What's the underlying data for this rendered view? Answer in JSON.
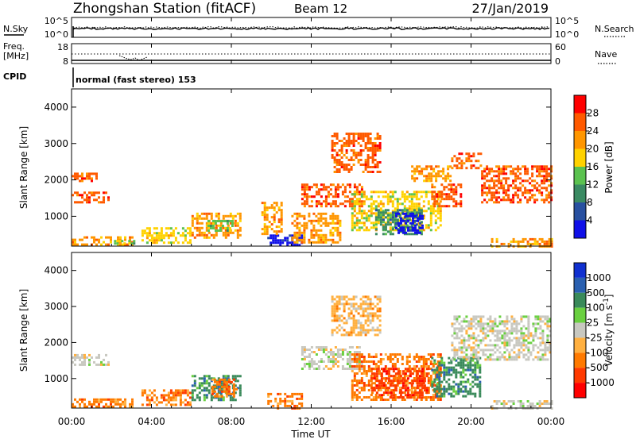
{
  "header": {
    "title": "Zhongshan Station (fitACF)",
    "beam": "Beam 12",
    "date": "27/Jan/2019"
  },
  "noise_panel": {
    "left_label_line1": "N.Sky",
    "left_ticks": [
      "10^5",
      "10^0"
    ],
    "right_label_line1": "N.Search",
    "right_ticks": [
      "10^5",
      "10^0"
    ]
  },
  "freq_panel": {
    "left_label_line1": "Freq.",
    "left_label_line2": "[MHz]",
    "left_ticks": [
      "18",
      "8"
    ],
    "right_label": "Nave",
    "right_ticks": [
      "60",
      "0"
    ]
  },
  "cpid": {
    "label": "CPID",
    "mode": "normal (fast stereo) 153"
  },
  "chart_data": [
    {
      "type": "heatmap",
      "name": "Power",
      "ylabel": "Slant Range [km]",
      "xlabel": "Time UT",
      "xlim": [
        0,
        24
      ],
      "ylim": [
        180,
        4500
      ],
      "yticks": [
        "1000",
        "2000",
        "3000",
        "4000"
      ],
      "colorbar_label": "Power [dB]",
      "colorbar_ticks": [
        "28",
        "24",
        "20",
        "16",
        "12",
        "8",
        "4"
      ],
      "colorbar_colors": [
        "#ff0000",
        "#ff5a00",
        "#ff9600",
        "#ffd200",
        "#5bc24f",
        "#3a8a62",
        "#2850a0",
        "#1010e8"
      ],
      "regions": [
        {
          "t0": 0.0,
          "t1": 1.8,
          "r0": 1380,
          "r1": 1680,
          "level": 1
        },
        {
          "t0": 0.0,
          "t1": 1.2,
          "r0": 1950,
          "r1": 2200,
          "level": 1
        },
        {
          "t0": 0.0,
          "t1": 3.0,
          "r0": 200,
          "r1": 450,
          "level": 2
        },
        {
          "t0": 2.0,
          "t1": 3.2,
          "r0": 250,
          "r1": 350,
          "level": 4
        },
        {
          "t0": 3.5,
          "t1": 6.0,
          "r0": 300,
          "r1": 700,
          "level": 3
        },
        {
          "t0": 6.0,
          "t1": 8.5,
          "r0": 400,
          "r1": 1100,
          "level": 2
        },
        {
          "t0": 6.8,
          "t1": 8.0,
          "r0": 600,
          "r1": 900,
          "level": 4
        },
        {
          "t0": 9.8,
          "t1": 11.5,
          "r0": 200,
          "r1": 500,
          "level": 7
        },
        {
          "t0": 9.5,
          "t1": 10.5,
          "r0": 500,
          "r1": 1400,
          "level": 2
        },
        {
          "t0": 11.5,
          "t1": 14.5,
          "r0": 1300,
          "r1": 1900,
          "level": 1
        },
        {
          "t0": 11.0,
          "t1": 13.5,
          "r0": 300,
          "r1": 1100,
          "level": 2
        },
        {
          "t0": 13.0,
          "t1": 15.5,
          "r0": 2200,
          "r1": 3300,
          "level": 1
        },
        {
          "t0": 14.0,
          "t1": 18.5,
          "r0": 600,
          "r1": 1700,
          "level": 3
        },
        {
          "t0": 15.2,
          "t1": 17.5,
          "r0": 500,
          "r1": 1200,
          "level": 5
        },
        {
          "t0": 16.2,
          "t1": 17.6,
          "r0": 550,
          "r1": 1100,
          "level": 7
        },
        {
          "t0": 17.0,
          "t1": 19.0,
          "r0": 2000,
          "r1": 2400,
          "level": 2
        },
        {
          "t0": 18.0,
          "t1": 19.5,
          "r0": 1300,
          "r1": 1900,
          "level": 1
        },
        {
          "t0": 19.0,
          "t1": 20.5,
          "r0": 2300,
          "r1": 2750,
          "level": 1
        },
        {
          "t0": 20.5,
          "t1": 24.0,
          "r0": 1400,
          "r1": 2400,
          "level": 1
        },
        {
          "t0": 21.0,
          "t1": 24.0,
          "r0": 200,
          "r1": 400,
          "level": 2
        }
      ]
    },
    {
      "type": "heatmap",
      "name": "Velocity",
      "ylabel": "Slant Range [km]",
      "xlabel": "Time UT",
      "xlim": [
        0,
        24
      ],
      "ylim": [
        180,
        4500
      ],
      "yticks": [
        "1000",
        "2000",
        "3000",
        "4000"
      ],
      "xticks": [
        "00:00",
        "04:00",
        "08:00",
        "12:00",
        "16:00",
        "20:00",
        "00:00"
      ],
      "colorbar_label": "Velocity [m s^-1]",
      "colorbar_ticks": [
        "1000",
        "500",
        "100",
        "25",
        "-25",
        "-100",
        "-500",
        "-1000"
      ],
      "colorbar_colors": [
        "#1030d0",
        "#2a60b0",
        "#3a8a5a",
        "#6ad040",
        "#c8c8c0",
        "#ffb040",
        "#ff7a00",
        "#ff3a00",
        "#ff0000"
      ],
      "regions": [
        {
          "t0": 0.0,
          "t1": 1.8,
          "r0": 1380,
          "r1": 1680,
          "level": 4
        },
        {
          "t0": 0.0,
          "t1": 3.0,
          "r0": 200,
          "r1": 450,
          "level": 6
        },
        {
          "t0": 3.5,
          "t1": 6.0,
          "r0": 300,
          "r1": 700,
          "level": 6
        },
        {
          "t0": 6.0,
          "t1": 8.5,
          "r0": 400,
          "r1": 1100,
          "level": 2
        },
        {
          "t0": 7.0,
          "t1": 8.2,
          "r0": 500,
          "r1": 1000,
          "level": 6
        },
        {
          "t0": 9.8,
          "t1": 11.5,
          "r0": 200,
          "r1": 600,
          "level": 6
        },
        {
          "t0": 11.5,
          "t1": 14.5,
          "r0": 1300,
          "r1": 1900,
          "level": 4
        },
        {
          "t0": 13.0,
          "t1": 15.5,
          "r0": 2200,
          "r1": 3300,
          "level": 5
        },
        {
          "t0": 14.0,
          "t1": 18.5,
          "r0": 400,
          "r1": 1700,
          "level": 6
        },
        {
          "t0": 15.0,
          "t1": 17.8,
          "r0": 500,
          "r1": 1300,
          "level": 7
        },
        {
          "t0": 18.0,
          "t1": 20.5,
          "r0": 500,
          "r1": 1600,
          "level": 2
        },
        {
          "t0": 19.0,
          "t1": 24.0,
          "r0": 1500,
          "r1": 2750,
          "level": 4
        },
        {
          "t0": 21.0,
          "t1": 24.0,
          "r0": 200,
          "r1": 400,
          "level": 4
        }
      ]
    }
  ],
  "axes": {
    "xlabel": "Time UT",
    "xticks": [
      "00:00",
      "04:00",
      "08:00",
      "12:00",
      "16:00",
      "20:00",
      "00:00"
    ],
    "sky_noise_series": "N.Sky",
    "search_noise_series": "N.Search",
    "nave_series": "Nave"
  }
}
